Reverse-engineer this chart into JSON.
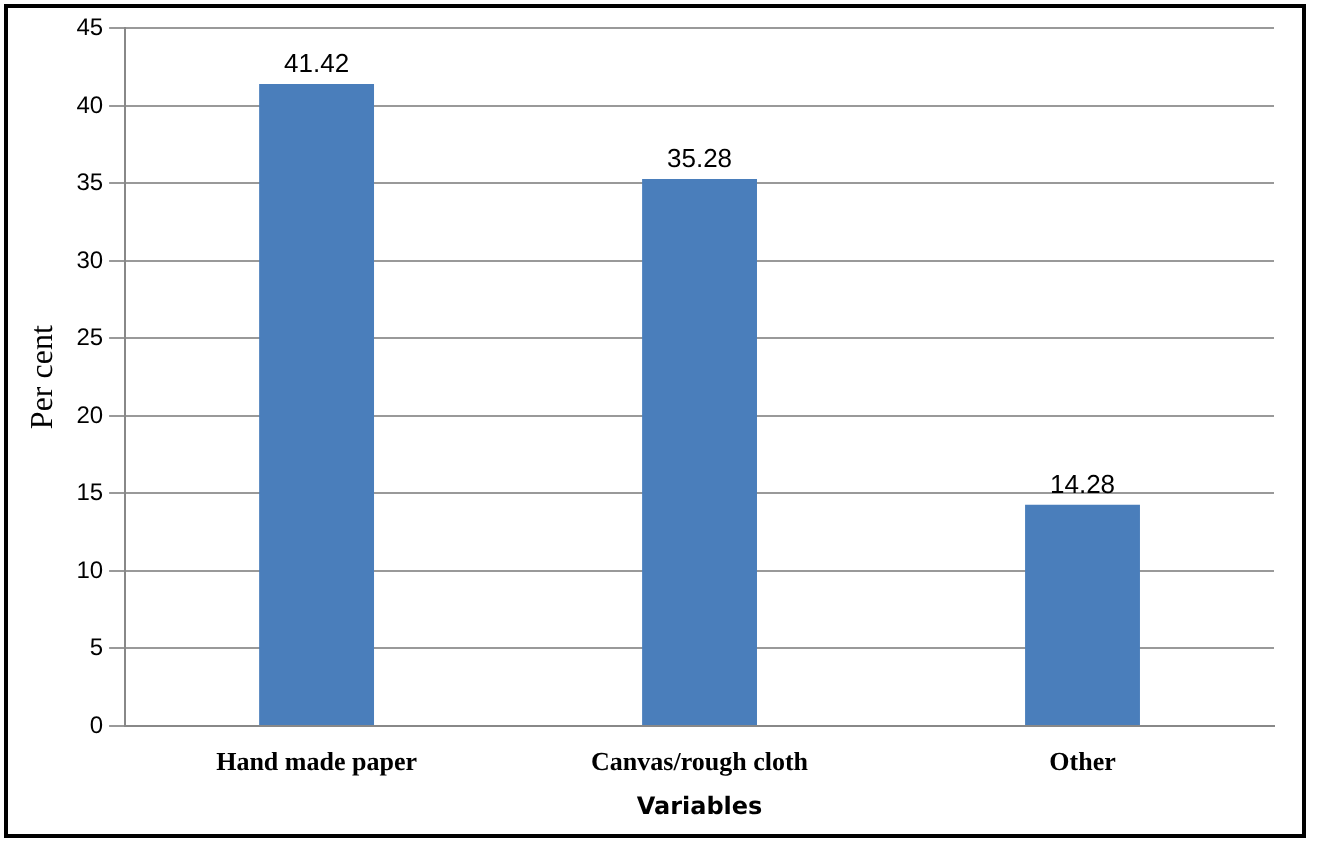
{
  "chart_data": {
    "type": "bar",
    "xlabel": "Variables",
    "ylabel": "Per cent",
    "categories": [
      "Hand made paper",
      "Canvas/rough cloth",
      "Other"
    ],
    "values": [
      41.42,
      35.28,
      14.28
    ],
    "color": "#4a7ebb",
    "ylim": [
      0,
      45
    ],
    "yticks": [
      0,
      5,
      10,
      15,
      20,
      25,
      30,
      35,
      40,
      45
    ],
    "grid": "y",
    "data_labels": true
  }
}
